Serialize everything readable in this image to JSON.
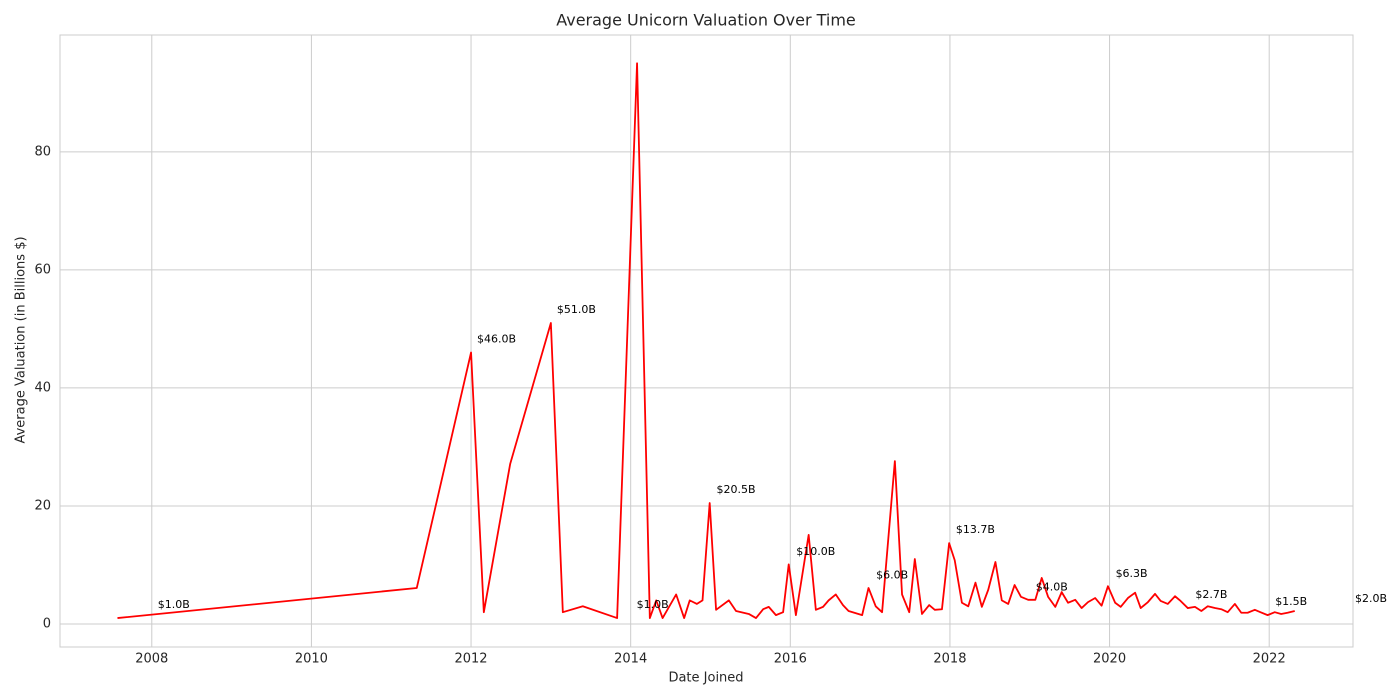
{
  "chart_data": {
    "type": "line",
    "title": "Average Unicorn Valuation Over Time",
    "xlabel": "Date Joined",
    "ylabel": "Average Valuation (in Billions $)",
    "color": "#ff0000",
    "grid": true,
    "xlim": [
      2006.85,
      2023.05
    ],
    "ylim": [
      -3.9,
      99.8
    ],
    "xticks": [
      2008,
      2010,
      2012,
      2014,
      2016,
      2018,
      2020,
      2022
    ],
    "yticks": [
      0,
      20,
      40,
      60,
      80
    ],
    "x": [
      2007.57,
      2011.32,
      2012.0,
      2012.16,
      2012.49,
      2013.0,
      2013.15,
      2013.4,
      2013.83,
      2014.08,
      2014.24,
      2014.32,
      2014.4,
      2014.57,
      2014.67,
      2014.74,
      2014.83,
      2014.9,
      2014.99,
      2015.07,
      2015.23,
      2015.32,
      2015.48,
      2015.57,
      2015.66,
      2015.73,
      2015.82,
      2015.91,
      2015.98,
      2016.07,
      2016.23,
      2016.32,
      2016.41,
      2016.48,
      2016.57,
      2016.66,
      2016.73,
      2016.9,
      2016.98,
      2017.07,
      2017.15,
      2017.31,
      2017.4,
      2017.49,
      2017.56,
      2017.65,
      2017.74,
      2017.81,
      2017.9,
      2017.99,
      2018.06,
      2018.15,
      2018.23,
      2018.32,
      2018.4,
      2018.48,
      2018.57,
      2018.65,
      2018.73,
      2018.81,
      2018.89,
      2018.98,
      2019.07,
      2019.15,
      2019.23,
      2019.32,
      2019.4,
      2019.48,
      2019.57,
      2019.65,
      2019.73,
      2019.82,
      2019.9,
      2019.98,
      2020.07,
      2020.14,
      2020.23,
      2020.32,
      2020.39,
      2020.48,
      2020.57,
      2020.64,
      2020.73,
      2020.82,
      2020.89,
      2020.98,
      2021.07,
      2021.15,
      2021.23,
      2021.32,
      2021.4,
      2021.48,
      2021.57,
      2021.65,
      2021.73,
      2021.82,
      2021.89,
      2021.98,
      2022.07,
      2022.15,
      2022.23,
      2022.32
    ],
    "values": [
      1.0,
      6.1,
      46.0,
      2.0,
      27.1,
      51.0,
      2.0,
      3.0,
      1.0,
      95.0,
      1.0,
      4.0,
      1.0,
      5.0,
      1.0,
      4.0,
      3.4,
      4.0,
      20.5,
      2.4,
      4.0,
      2.2,
      1.7,
      1.0,
      2.5,
      2.9,
      1.5,
      2.0,
      10.1,
      1.5,
      15.1,
      2.4,
      2.9,
      4.0,
      5.0,
      3.2,
      2.2,
      1.5,
      6.1,
      3.0,
      2.0,
      27.6,
      5.0,
      2.0,
      11.0,
      1.7,
      3.2,
      2.4,
      2.5,
      13.7,
      10.8,
      3.6,
      3.0,
      7.0,
      2.9,
      5.8,
      10.5,
      4.0,
      3.4,
      6.6,
      4.6,
      4.1,
      4.1,
      7.8,
      4.6,
      2.9,
      5.4,
      3.6,
      4.1,
      2.7,
      3.7,
      4.4,
      3.1,
      6.4,
      3.6,
      2.9,
      4.4,
      5.3,
      2.7,
      3.7,
      5.1,
      3.9,
      3.4,
      4.7,
      3.9,
      2.7,
      2.9,
      2.2,
      3.0,
      2.7,
      2.5,
      2.0,
      3.4,
      1.9,
      1.9,
      2.4,
      2.0,
      1.5,
      2.0,
      1.7,
      1.9,
      2.2
    ],
    "annotations": [
      {
        "x": 2008,
        "value": 1.0,
        "label": "$1.0B"
      },
      {
        "x": 2012,
        "value": 46.0,
        "label": "$46.0B"
      },
      {
        "x": 2013,
        "value": 51.0,
        "label": "$51.0B"
      },
      {
        "x": 2014,
        "value": 1.0,
        "label": "$1.0B"
      },
      {
        "x": 2015,
        "value": 20.5,
        "label": "$20.5B"
      },
      {
        "x": 2016,
        "value": 10.0,
        "label": "$10.0B"
      },
      {
        "x": 2017,
        "value": 6.0,
        "label": "$6.0B"
      },
      {
        "x": 2018,
        "value": 13.7,
        "label": "$13.7B"
      },
      {
        "x": 2019,
        "value": 4.0,
        "label": "$4.0B"
      },
      {
        "x": 2020,
        "value": 6.3,
        "label": "$6.3B"
      },
      {
        "x": 2021,
        "value": 2.7,
        "label": "$2.7B"
      },
      {
        "x": 2022,
        "value": 1.5,
        "label": "$1.5B"
      },
      {
        "x": 2023,
        "value": 2.0,
        "label": "$2.0B"
      }
    ]
  }
}
